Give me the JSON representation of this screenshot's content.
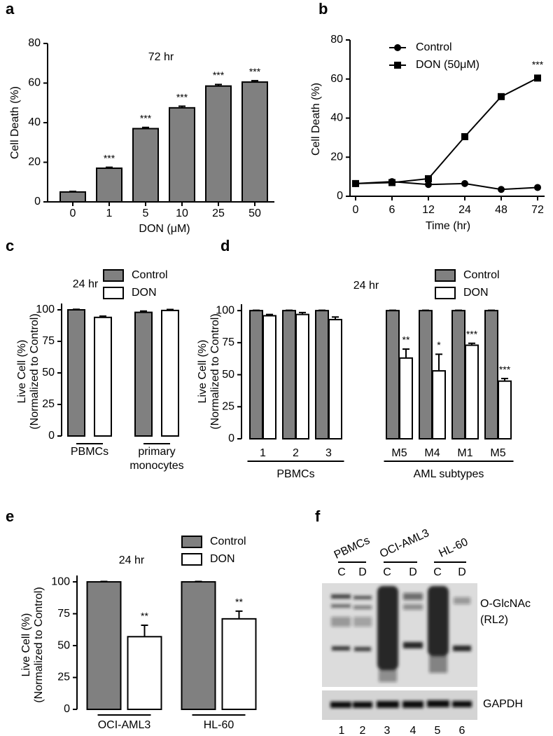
{
  "chart_data": [
    {
      "type": "bar",
      "panel": "a",
      "annotation": "72 hr",
      "ylabel": "Cell Death (%)",
      "xlabel": "DON (μM)",
      "categories": [
        "0",
        "1",
        "5",
        "10",
        "25",
        "50"
      ],
      "series": [
        {
          "color": "#808080",
          "values": [
            5,
            17,
            37,
            47.5,
            58.5,
            60.5
          ],
          "errors": [
            0.3,
            0.5,
            0.6,
            0.8,
            0.8,
            0.7
          ],
          "significance": [
            null,
            "***",
            "***",
            "***",
            "***",
            "***"
          ]
        }
      ],
      "ylim": [
        0,
        80
      ],
      "yticks": [
        0,
        20,
        40,
        60,
        80
      ]
    },
    {
      "type": "line",
      "panel": "b",
      "ylabel": "Cell Death (%)",
      "xlabel": "Time (hr)",
      "categories": [
        "0",
        "6",
        "12",
        "24",
        "48",
        "72"
      ],
      "series": [
        {
          "name": "Control",
          "color": "#000000",
          "marker": "circle",
          "values": [
            6.5,
            7.5,
            6,
            6.5,
            3.5,
            4.5
          ]
        },
        {
          "name": "DON (50μM)",
          "color": "#000000",
          "marker": "square",
          "values": [
            6.5,
            7,
            9,
            30.5,
            51,
            60.5
          ],
          "significance": [
            null,
            null,
            null,
            null,
            null,
            "***"
          ]
        }
      ],
      "ylim": [
        0,
        80
      ],
      "yticks": [
        0,
        20,
        40,
        60,
        80
      ],
      "legend": "upper center"
    },
    {
      "type": "bar",
      "panel": "c",
      "annotation": "24 hr",
      "ylabel": [
        "Live Cell (%)",
        "(Normalized to Control)"
      ],
      "categories": [
        "PBMCs",
        "primary\nmonocytes"
      ],
      "series": [
        {
          "name": "Control",
          "color": "#808080",
          "values": [
            100,
            98
          ],
          "errors": [
            0.4,
            1
          ]
        },
        {
          "name": "DON",
          "color": "#ffffff",
          "values": [
            94,
            99.5
          ],
          "errors": [
            1,
            0.8
          ]
        }
      ],
      "ylim": [
        0,
        105
      ],
      "yticks": [
        0,
        25,
        50,
        75,
        100
      ],
      "legend": "upper center"
    },
    {
      "type": "bar",
      "panel": "d",
      "annotation": "24 hr",
      "ylabel": [
        "Live Cell (%)",
        "(Normalized to Control)"
      ],
      "groups": [
        {
          "label": "PBMCs",
          "categories": [
            "1",
            "2",
            "3"
          ]
        },
        {
          "label": "AML subtypes",
          "categories": [
            "M5",
            "M4",
            "M1",
            "M5"
          ]
        }
      ],
      "series": [
        {
          "name": "Control",
          "color": "#808080",
          "values": [
            100,
            100,
            100,
            100,
            100,
            100,
            100
          ],
          "errors": [
            0.3,
            0.3,
            0.3,
            0.3,
            0.3,
            0.3,
            0.3
          ]
        },
        {
          "name": "DON",
          "color": "#ffffff",
          "values": [
            96,
            97,
            93,
            63,
            53,
            73,
            45
          ],
          "errors": [
            1,
            1.5,
            2,
            7,
            13,
            1.5,
            2
          ],
          "significance": [
            null,
            null,
            null,
            "**",
            "*",
            "***",
            "***"
          ]
        }
      ],
      "ylim": [
        0,
        105
      ],
      "yticks": [
        0,
        25,
        50,
        75,
        100
      ],
      "legend": "upper right"
    },
    {
      "type": "bar",
      "panel": "e",
      "annotation": "24 hr",
      "ylabel": [
        "Live Cell (%)",
        "(Normalized to Control)"
      ],
      "categories": [
        "OCI-AML3",
        "HL-60"
      ],
      "series": [
        {
          "name": "Control",
          "color": "#808080",
          "values": [
            100,
            100
          ],
          "errors": [
            0.3,
            0.3
          ]
        },
        {
          "name": "DON",
          "color": "#ffffff",
          "values": [
            57,
            71
          ],
          "errors": [
            9,
            6
          ],
          "significance": [
            "**",
            "**"
          ]
        }
      ],
      "ylim": [
        0,
        105
      ],
      "yticks": [
        0,
        25,
        50,
        75,
        100
      ],
      "legend": "upper right"
    }
  ],
  "blot": {
    "panel": "f",
    "groups": [
      "PBMCs",
      "OCI-AML3",
      "HL-60"
    ],
    "lanes": [
      "C",
      "D",
      "C",
      "D",
      "C",
      "D"
    ],
    "lane_numbers": [
      "1",
      "2",
      "3",
      "4",
      "5",
      "6"
    ],
    "labels": [
      "O-GlcNAc",
      "(RL2)"
    ],
    "loading_control": "GAPDH"
  }
}
